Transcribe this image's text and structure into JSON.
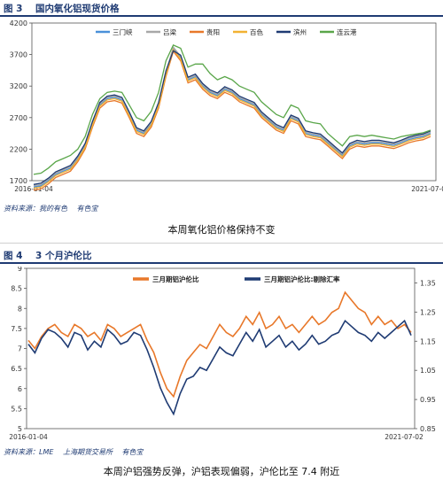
{
  "figure1": {
    "number": "图 3",
    "title": "国内氧化铝现货价格",
    "source": [
      "资料来源：我的有色",
      "有色宝"
    ],
    "caption": "本周氧化铝价格保持不变",
    "chart_data": {
      "type": "line",
      "x_tick_labels": [
        "2016-01-04",
        "2021-07-02"
      ],
      "ylim": [
        1700,
        4200
      ],
      "yticks": [
        1700,
        2200,
        2700,
        3200,
        3700,
        4200
      ],
      "grid": false,
      "legend_position": "top-right",
      "series": [
        {
          "name": "三门峡",
          "color": "#4a90d9",
          "values": [
            1600,
            1620,
            1700,
            1800,
            1850,
            1900,
            2050,
            2250,
            2600,
            2900,
            3000,
            3020,
            2980,
            2750,
            2500,
            2450,
            2600,
            2900,
            3400,
            3800,
            3650,
            3300,
            3350,
            3200,
            3100,
            3050,
            3150,
            3100,
            3000,
            2950,
            2900,
            2750,
            2650,
            2550,
            2500,
            2700,
            2650,
            2450,
            2420,
            2400,
            2300,
            2200,
            2100,
            2250,
            2300,
            2280,
            2300,
            2300,
            2280,
            2260,
            2300,
            2350,
            2380,
            2400,
            2450
          ]
        },
        {
          "name": "吕梁",
          "color": "#a8a8a8",
          "values": [
            1620,
            1640,
            1720,
            1820,
            1870,
            1920,
            2070,
            2270,
            2620,
            2920,
            3020,
            3040,
            3000,
            2770,
            2520,
            2470,
            2620,
            2920,
            3420,
            3820,
            3670,
            3320,
            3370,
            3220,
            3120,
            3070,
            3170,
            3120,
            3020,
            2970,
            2920,
            2770,
            2670,
            2570,
            2520,
            2720,
            2670,
            2470,
            2440,
            2420,
            2320,
            2220,
            2120,
            2270,
            2320,
            2300,
            2320,
            2320,
            2300,
            2280,
            2320,
            2370,
            2400,
            2420,
            2470
          ]
        },
        {
          "name": "贵阳",
          "color": "#e8782a",
          "values": [
            1550,
            1570,
            1650,
            1750,
            1800,
            1850,
            2000,
            2200,
            2550,
            2850,
            2950,
            2970,
            2930,
            2700,
            2450,
            2400,
            2550,
            2850,
            3350,
            3750,
            3600,
            3250,
            3300,
            3150,
            3050,
            3000,
            3100,
            3050,
            2950,
            2900,
            2850,
            2700,
            2600,
            2500,
            2450,
            2650,
            2600,
            2400,
            2370,
            2350,
            2250,
            2150,
            2050,
            2200,
            2250,
            2230,
            2250,
            2250,
            2230,
            2210,
            2250,
            2300,
            2330,
            2350,
            2400
          ]
        },
        {
          "name": "百色",
          "color": "#f2b233",
          "values": [
            1580,
            1600,
            1680,
            1780,
            1830,
            1880,
            2030,
            2230,
            2580,
            2880,
            2980,
            3000,
            2960,
            2730,
            2480,
            2430,
            2580,
            2880,
            3380,
            3780,
            3630,
            3280,
            3330,
            3180,
            3080,
            3030,
            3130,
            3080,
            2980,
            2930,
            2880,
            2730,
            2630,
            2530,
            2480,
            2680,
            2630,
            2430,
            2400,
            2380,
            2280,
            2180,
            2080,
            2230,
            2280,
            2260,
            2280,
            2280,
            2260,
            2240,
            2280,
            2330,
            2360,
            2380,
            2430
          ]
        },
        {
          "name": "滨州",
          "color": "#1f3b73",
          "values": [
            1640,
            1660,
            1740,
            1840,
            1890,
            1940,
            2090,
            2290,
            2640,
            2940,
            3040,
            3060,
            3020,
            2790,
            2540,
            2490,
            2640,
            2940,
            3440,
            3760,
            3690,
            3340,
            3390,
            3240,
            3140,
            3090,
            3190,
            3140,
            3040,
            2990,
            2940,
            2790,
            2690,
            2590,
            2540,
            2740,
            2690,
            2490,
            2460,
            2440,
            2340,
            2240,
            2140,
            2290,
            2340,
            2320,
            2340,
            2340,
            2320,
            2300,
            2340,
            2390,
            2420,
            2440,
            2490
          ]
        },
        {
          "name": "连云港",
          "color": "#5aa64a",
          "values": [
            1800,
            1820,
            1900,
            2000,
            2050,
            2100,
            2200,
            2400,
            2750,
            3000,
            3100,
            3120,
            3100,
            2900,
            2700,
            2650,
            2800,
            3100,
            3600,
            3850,
            3800,
            3500,
            3550,
            3550,
            3400,
            3300,
            3350,
            3300,
            3200,
            3150,
            3100,
            2950,
            2850,
            2750,
            2700,
            2900,
            2850,
            2650,
            2620,
            2600,
            2450,
            2350,
            2250,
            2400,
            2420,
            2400,
            2420,
            2400,
            2380,
            2360,
            2400,
            2420,
            2440,
            2460,
            2500
          ]
        }
      ]
    }
  },
  "figure2": {
    "number": "图 4",
    "title": "3 个月沪伦比",
    "source": [
      "资料来源：LME",
      "上海期货交易所",
      "有色宝"
    ],
    "caption": "本周沪铝强势反弹，沪铝表现偏弱，沪伦比至 7.4 附近",
    "chart_data": {
      "type": "line",
      "x_tick_labels": [
        "2016-01-04",
        "2021-07-02"
      ],
      "ylim_left": [
        5,
        9
      ],
      "yticks_left": [
        5,
        5.5,
        6,
        6.5,
        7,
        7.5,
        8,
        8.5,
        9
      ],
      "ylim_right": [
        0.85,
        1.4
      ],
      "yticks_right": [
        0.85,
        0.95,
        1.05,
        1.15,
        1.25,
        1.35
      ],
      "grid": false,
      "legend_position": "top",
      "series": [
        {
          "name": "三月期铝沪伦比",
          "axis": "left",
          "color": "#e8782a",
          "values": [
            7.2,
            7.0,
            7.3,
            7.5,
            7.6,
            7.4,
            7.3,
            7.6,
            7.5,
            7.3,
            7.4,
            7.2,
            7.6,
            7.5,
            7.3,
            7.4,
            7.5,
            7.6,
            7.2,
            6.9,
            6.4,
            6.0,
            5.8,
            6.3,
            6.7,
            6.9,
            7.1,
            7.0,
            7.3,
            7.6,
            7.4,
            7.3,
            7.5,
            7.8,
            7.6,
            7.9,
            7.5,
            7.6,
            7.8,
            7.5,
            7.6,
            7.4,
            7.6,
            7.8,
            7.6,
            7.7,
            7.9,
            8.0,
            8.4,
            8.2,
            8.0,
            7.9,
            7.6,
            7.8,
            7.6,
            7.7,
            7.5,
            7.6,
            7.4
          ]
        },
        {
          "name": "三月期铝沪伦比:剔除汇率",
          "axis": "right",
          "color": "#1f3b73",
          "values": [
            1.14,
            1.11,
            1.16,
            1.19,
            1.18,
            1.16,
            1.13,
            1.18,
            1.17,
            1.12,
            1.15,
            1.13,
            1.19,
            1.17,
            1.14,
            1.15,
            1.18,
            1.17,
            1.12,
            1.06,
            0.99,
            0.94,
            0.9,
            0.97,
            1.02,
            1.03,
            1.06,
            1.05,
            1.09,
            1.13,
            1.11,
            1.1,
            1.14,
            1.18,
            1.15,
            1.19,
            1.13,
            1.15,
            1.17,
            1.13,
            1.15,
            1.12,
            1.14,
            1.17,
            1.14,
            1.15,
            1.17,
            1.18,
            1.22,
            1.2,
            1.18,
            1.17,
            1.15,
            1.18,
            1.16,
            1.18,
            1.2,
            1.22,
            1.17
          ]
        }
      ]
    }
  }
}
